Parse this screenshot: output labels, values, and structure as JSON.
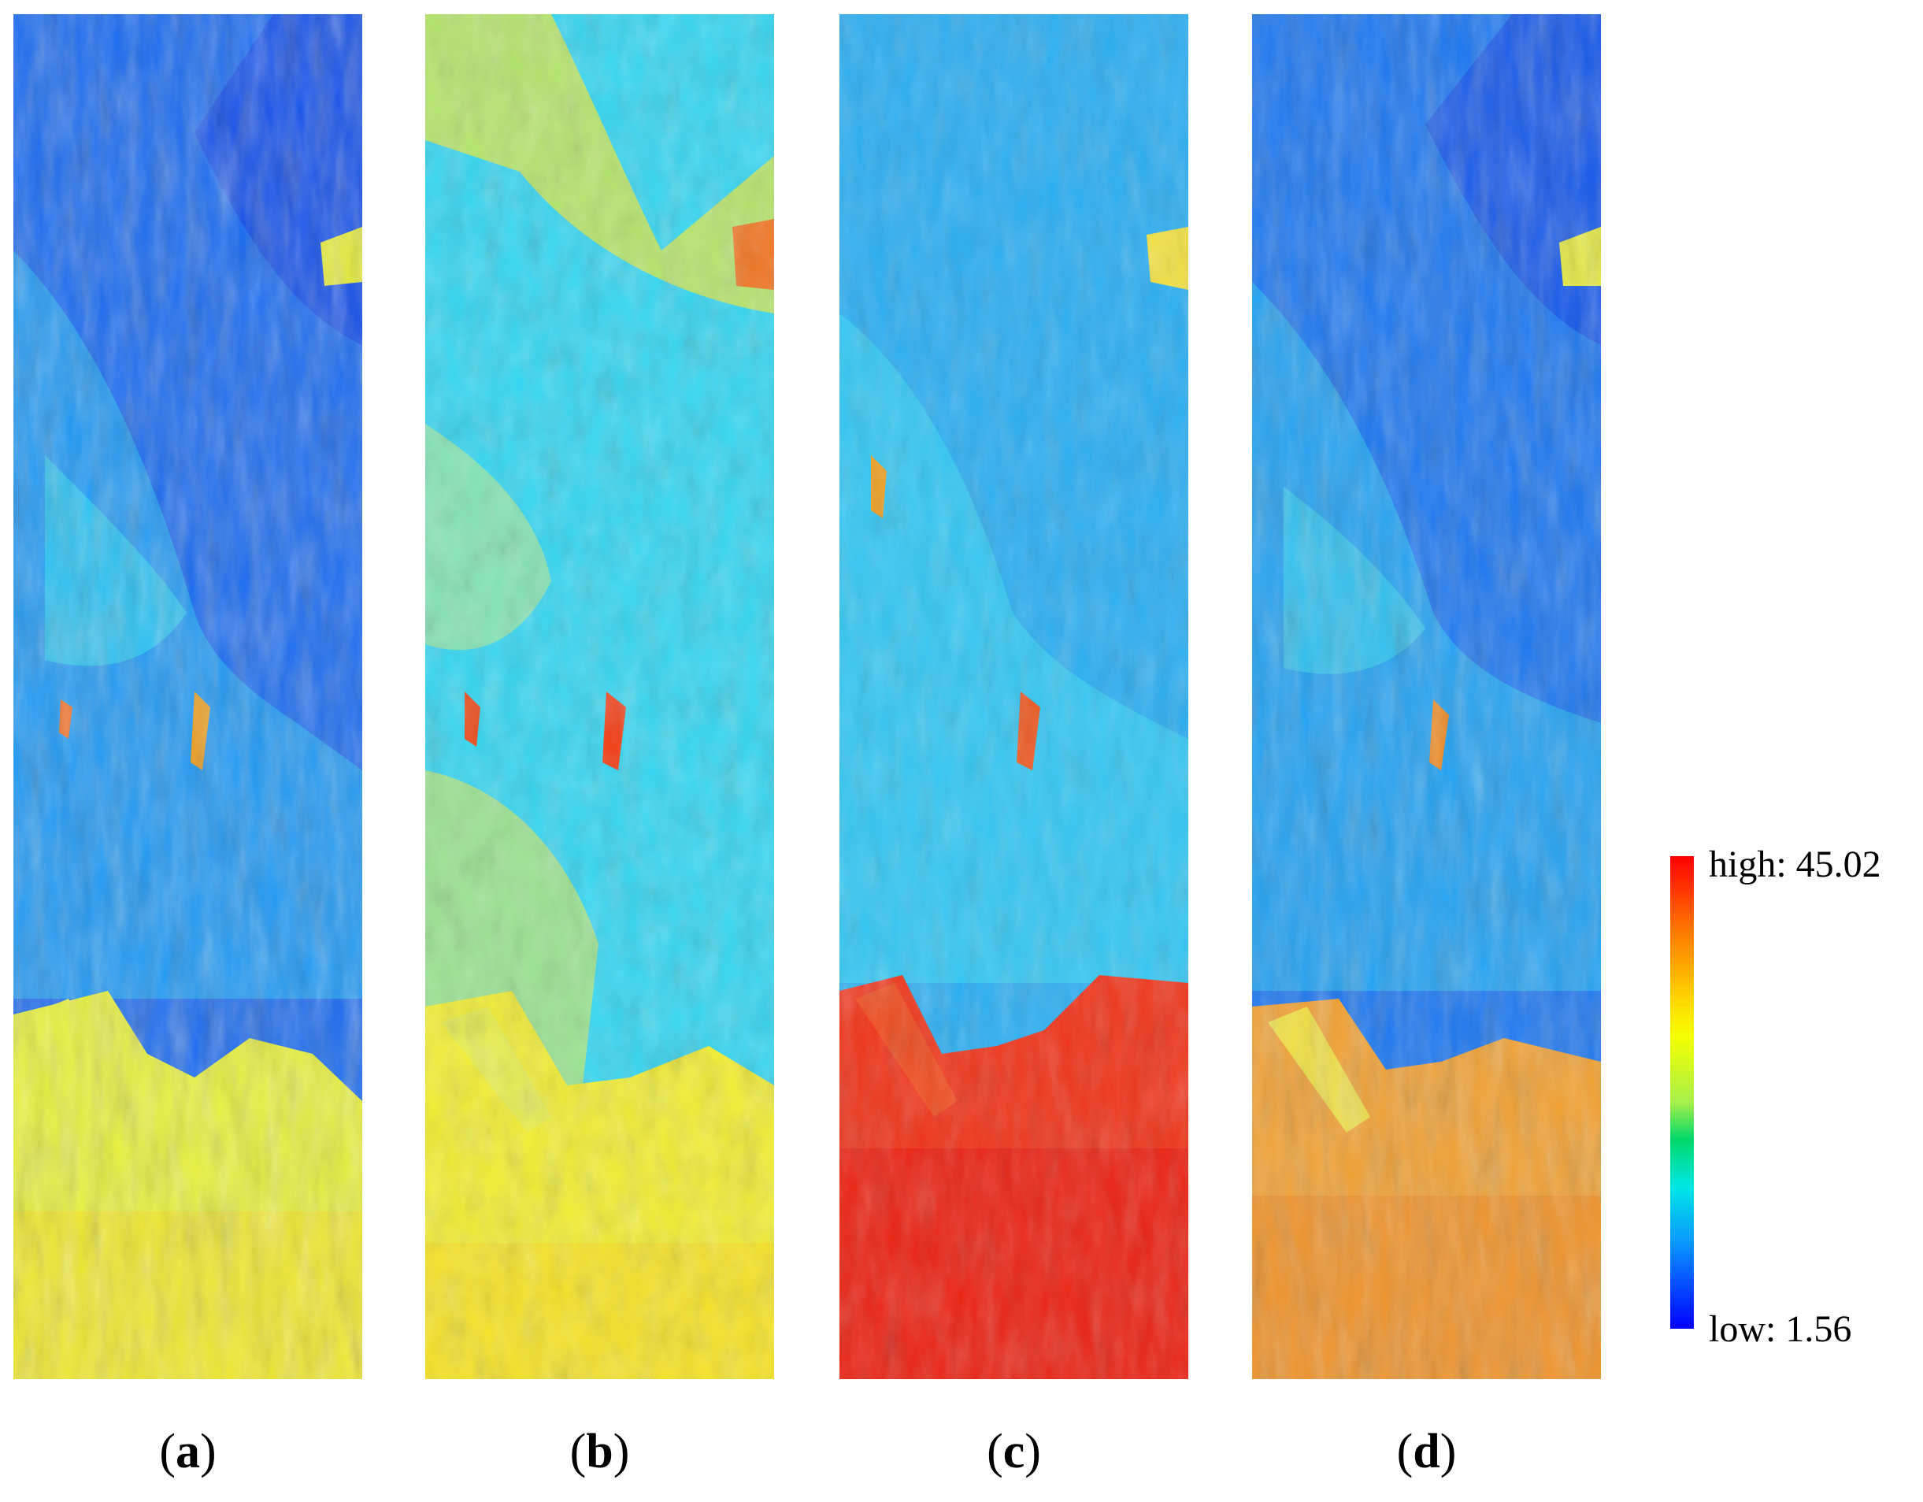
{
  "panels": [
    {
      "id": "a",
      "label_open": "(",
      "label_letter": "a",
      "label_close": ")",
      "scheme": "blue"
    },
    {
      "id": "b",
      "label_open": "(",
      "label_letter": "b",
      "label_close": ")",
      "scheme": "cyan"
    },
    {
      "id": "c",
      "label_open": "(",
      "label_letter": "c",
      "label_close": ")",
      "scheme": "cyanred"
    },
    {
      "id": "d",
      "label_open": "(",
      "label_letter": "d",
      "label_close": ")",
      "scheme": "blueorange"
    }
  ],
  "colorbar": {
    "high_label": "high: 45.02",
    "low_label": "low: 1.56",
    "colors": [
      "#ff0000",
      "#ff7a00",
      "#ffd400",
      "#f6ff00",
      "#a8f04a",
      "#00d86a",
      "#00e6e6",
      "#0a96ff",
      "#0000ff"
    ]
  }
}
